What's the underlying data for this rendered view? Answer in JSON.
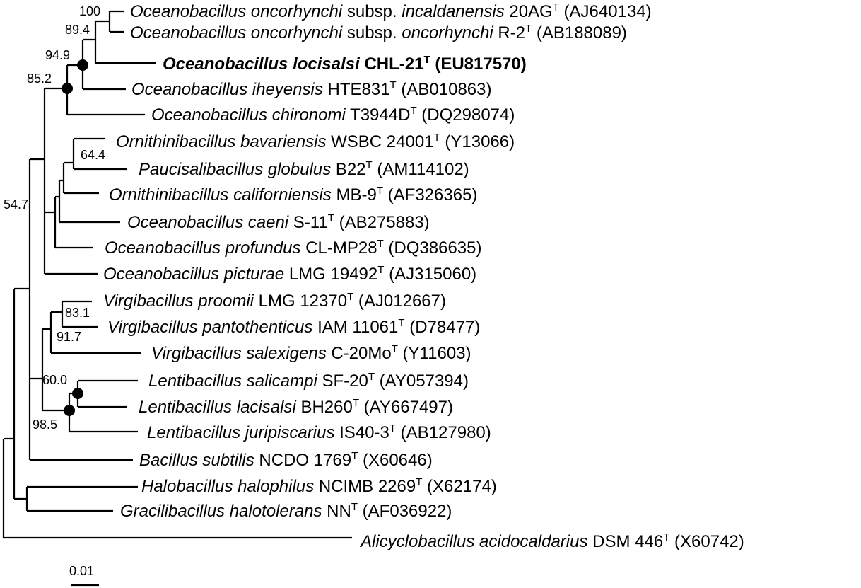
{
  "taxa": [
    {
      "genus_species": "Oceanobacillus oncorhynchi",
      "mid": " subsp. ",
      "subsp": "incaldanensis",
      "strain": " 20AG",
      "sup": "T",
      "acc": " (AJ640134)"
    },
    {
      "genus_species": "Oceanobacillus oncorhynchi",
      "mid": " subsp. ",
      "subsp": "oncorhynchi",
      "strain": " R-2",
      "sup": "T",
      "acc": " (AB188089)"
    },
    {
      "genus_species": "Oceanobacillus locisalsi",
      "mid": "",
      "subsp": "",
      "strain": " CHL-21",
      "sup": "T",
      "acc": " (EU817570)",
      "bold": true
    },
    {
      "genus_species": "Oceanobacillus iheyensis",
      "mid": "",
      "subsp": "",
      "strain": " HTE831",
      "sup": "T",
      "acc": " (AB010863)"
    },
    {
      "genus_species": "Oceanobacillus chironomi",
      "mid": "",
      "subsp": "",
      "strain": " T3944D",
      "sup": "T",
      "acc": " (DQ298074)"
    },
    {
      "genus_species": "Ornithinibacillus bavariensis",
      "mid": "",
      "subsp": "",
      "strain": " WSBC 24001",
      "sup": "T",
      "acc": " (Y13066)"
    },
    {
      "genus_species": "Paucisalibacillus globulus",
      "mid": "",
      "subsp": "",
      "strain": " B22",
      "sup": "T",
      "acc": " (AM114102)"
    },
    {
      "genus_species": "Ornithinibacillus californiensis",
      "mid": "",
      "subsp": "",
      "strain": " MB-9",
      "sup": "T",
      "acc": " (AF326365)"
    },
    {
      "genus_species": "Oceanobacillus caeni",
      "mid": "",
      "subsp": "",
      "strain": " S-11",
      "sup": "T",
      "acc": " (AB275883)"
    },
    {
      "genus_species": "Oceanobacillus profundus",
      "mid": "",
      "subsp": "",
      "strain": " CL-MP28",
      "sup": "T",
      "acc": " (DQ386635)"
    },
    {
      "genus_species": "Oceanobacillus picturae",
      "mid": "",
      "subsp": "",
      "strain": " LMG 19492",
      "sup": "T",
      "acc": " (AJ315060)"
    },
    {
      "genus_species": "Virgibacillus proomii",
      "mid": "",
      "subsp": "",
      "strain": " LMG 12370",
      "sup": "T",
      "acc": " (AJ012667)"
    },
    {
      "genus_species": "Virgibacillus pantothenticus",
      "mid": "",
      "subsp": "",
      "strain": " IAM 11061",
      "sup": "T",
      "acc": " (D78477)"
    },
    {
      "genus_species": "Virgibacillus salexigens",
      "mid": "",
      "subsp": "",
      "strain": " C-20Mo",
      "sup": "T",
      "acc": " (Y11603)"
    },
    {
      "genus_species": "Lentibacillus salicampi",
      "mid": "",
      "subsp": "",
      "strain": " SF-20",
      "sup": "T",
      "acc": " (AY057394)"
    },
    {
      "genus_species": "Lentibacillus lacisalsi",
      "mid": "",
      "subsp": "",
      "strain": " BH260",
      "sup": "T",
      "acc": " (AY667497)"
    },
    {
      "genus_species": "Lentibacillus juripiscarius",
      "mid": "",
      "subsp": "",
      "strain": " IS40-3",
      "sup": "T",
      "acc": " (AB127980)"
    },
    {
      "genus_species": "Bacillus subtilis",
      "mid": "",
      "subsp": "",
      "strain": " NCDO 1769",
      "sup": "T",
      "acc": " (X60646)"
    },
    {
      "genus_species": "Halobacillus halophilus",
      "mid": "",
      "subsp": "",
      "strain": " NCIMB 2269",
      "sup": "T",
      "acc": " (X62174)"
    },
    {
      "genus_species": "Gracilibacillus halotolerans",
      "mid": "",
      "subsp": "",
      "strain": " NN",
      "sup": "T",
      "acc": " (AF036922)"
    },
    {
      "genus_species": "Alicyclobacillus acidocaldarius",
      "mid": "",
      "subsp": "",
      "strain": " DSM 446",
      "sup": "T",
      "acc": " (X60742)"
    }
  ],
  "bootstrap": {
    "b100": "100",
    "b89_4": "89.4",
    "b94_9": "94.9",
    "b85_2": "85.2",
    "b64_4": "64.4",
    "b54_7": "54.7",
    "b83_1": "83.1",
    "b91_7": "91.7",
    "b60_0": "60.0",
    "b98_5": "98.5"
  },
  "scale_bar": {
    "label": "0.01"
  }
}
